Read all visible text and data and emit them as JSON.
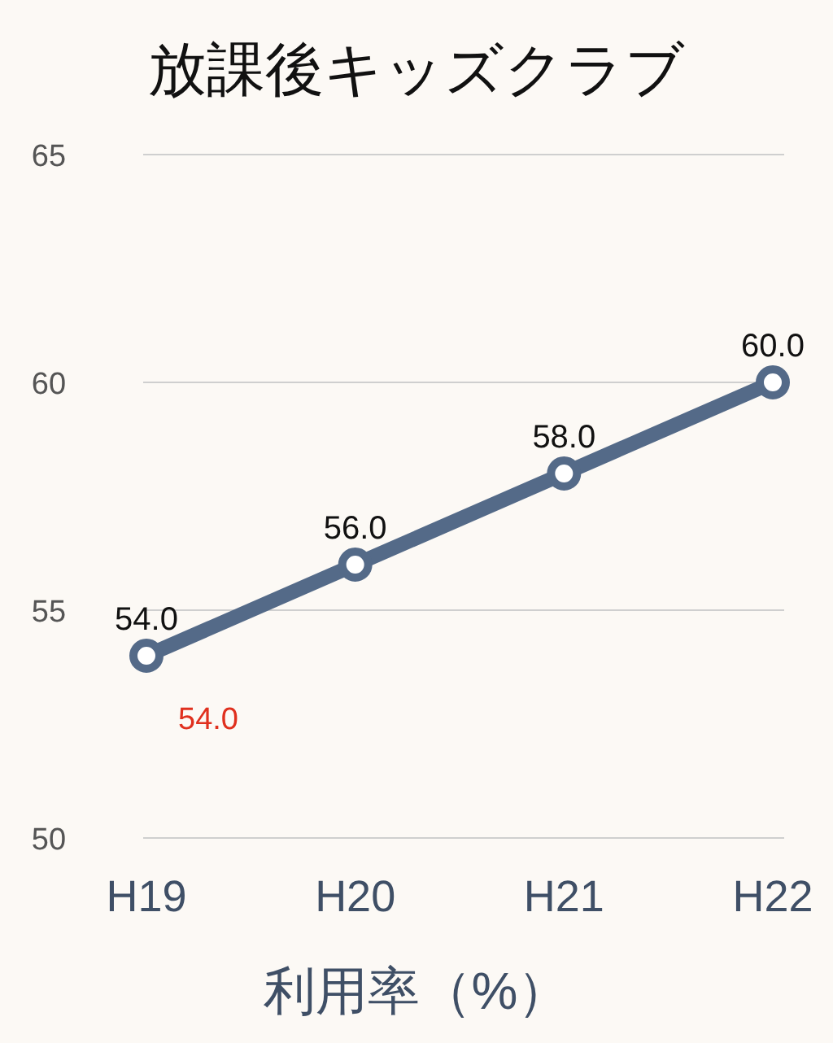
{
  "chart_data": {
    "type": "line",
    "title": "放課後キッズクラブ",
    "xlabel": "利用率（%）",
    "categories": [
      "H19",
      "H20",
      "H21",
      "H22"
    ],
    "series": [
      {
        "color": "#546a88",
        "values": [
          54.0,
          56.0,
          58.0,
          60.0
        ],
        "value_labels": [
          "54.0",
          "56.0",
          "58.0",
          "60.0"
        ]
      }
    ],
    "ylim": [
      50,
      65
    ],
    "yticks": [
      50,
      55,
      60,
      65
    ],
    "grid": "y",
    "marker": "circle",
    "annotations": [
      {
        "text": "54.0",
        "x": "H19",
        "y": 54
      }
    ]
  }
}
